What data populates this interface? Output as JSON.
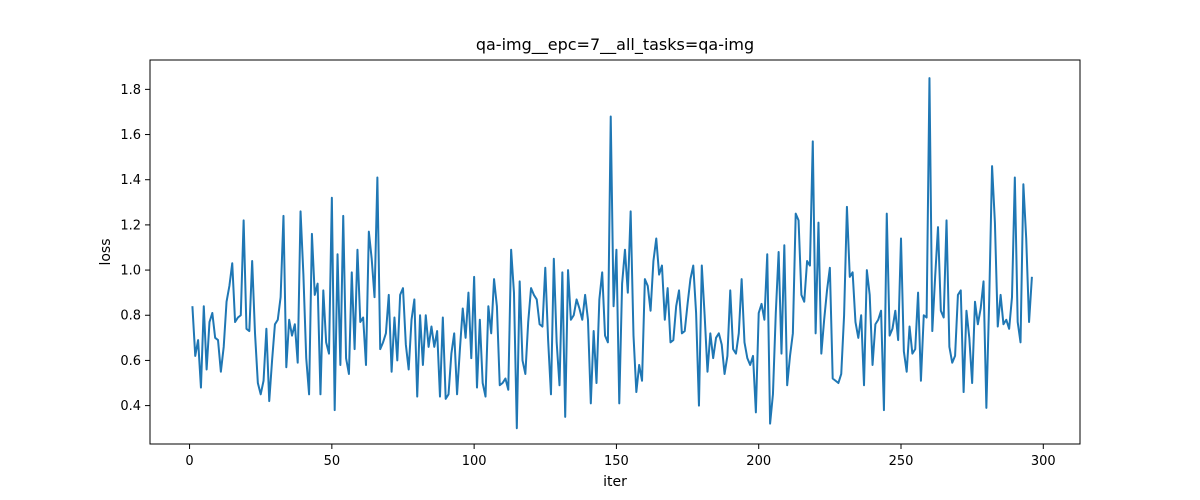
{
  "chart_data": {
    "type": "line",
    "title": "qa-img__epc=7__all_tasks=qa-img",
    "xlabel": "iter",
    "ylabel": "loss",
    "xlim": [
      -13.9,
      312.9
    ],
    "ylim": [
      0.23,
      1.93
    ],
    "x_ticks": [
      0,
      50,
      100,
      150,
      200,
      250,
      300
    ],
    "y_ticks": [
      0.4,
      0.6,
      0.8,
      1.0,
      1.2,
      1.4,
      1.6,
      1.8
    ],
    "x_tick_labels": [
      "0",
      "50",
      "100",
      "150",
      "200",
      "250",
      "300"
    ],
    "y_tick_labels": [
      "0.4",
      "0.6",
      "0.8",
      "1.0",
      "1.2",
      "1.4",
      "1.6",
      "1.8"
    ],
    "grid": false,
    "line_color": "#1f77b4",
    "series": [
      {
        "x_start": 1,
        "x_step": 1,
        "values": [
          0.84,
          0.62,
          0.69,
          0.48,
          0.84,
          0.56,
          0.77,
          0.81,
          0.7,
          0.69,
          0.55,
          0.66,
          0.86,
          0.93,
          1.03,
          0.77,
          0.79,
          0.8,
          1.22,
          0.74,
          0.73,
          1.04,
          0.72,
          0.5,
          0.45,
          0.51,
          0.74,
          0.42,
          0.6,
          0.76,
          0.78,
          0.88,
          1.24,
          0.57,
          0.78,
          0.71,
          0.76,
          0.59,
          1.26,
          0.98,
          0.61,
          0.45,
          1.16,
          0.89,
          0.94,
          0.45,
          0.91,
          0.68,
          0.63,
          1.32,
          0.38,
          1.07,
          0.58,
          1.24,
          0.61,
          0.54,
          0.99,
          0.65,
          1.09,
          0.77,
          0.79,
          0.58,
          1.17,
          1.05,
          0.88,
          1.41,
          0.65,
          0.68,
          0.72,
          0.89,
          0.55,
          0.79,
          0.6,
          0.89,
          0.92,
          0.67,
          0.56,
          0.78,
          0.87,
          0.44,
          0.8,
          0.58,
          0.8,
          0.66,
          0.75,
          0.66,
          0.73,
          0.44,
          0.79,
          0.43,
          0.45,
          0.63,
          0.72,
          0.45,
          0.65,
          0.83,
          0.7,
          0.9,
          0.61,
          0.97,
          0.48,
          0.78,
          0.5,
          0.44,
          0.84,
          0.72,
          0.96,
          0.84,
          0.49,
          0.5,
          0.52,
          0.47,
          1.09,
          0.9,
          0.3,
          0.95,
          0.6,
          0.54,
          0.77,
          0.92,
          0.89,
          0.87,
          0.76,
          0.75,
          1.01,
          0.69,
          0.45,
          1.05,
          0.68,
          0.49,
          0.99,
          0.35,
          1.0,
          0.78,
          0.8,
          0.87,
          0.83,
          0.78,
          0.89,
          0.78,
          0.41,
          0.73,
          0.5,
          0.87,
          0.99,
          0.71,
          0.68,
          1.68,
          0.84,
          1.09,
          0.41,
          0.94,
          1.09,
          0.9,
          1.26,
          0.71,
          0.46,
          0.58,
          0.51,
          0.96,
          0.93,
          0.82,
          1.04,
          1.14,
          0.98,
          1.02,
          0.78,
          0.92,
          0.68,
          0.69,
          0.84,
          0.91,
          0.72,
          0.73,
          0.85,
          0.96,
          1.02,
          0.81,
          0.4,
          1.02,
          0.8,
          0.55,
          0.72,
          0.61,
          0.7,
          0.72,
          0.67,
          0.54,
          0.62,
          0.91,
          0.65,
          0.63,
          0.72,
          0.96,
          0.68,
          0.61,
          0.58,
          0.62,
          0.37,
          0.81,
          0.85,
          0.78,
          1.07,
          0.32,
          0.45,
          0.81,
          1.08,
          0.63,
          1.11,
          0.49,
          0.62,
          0.72,
          1.25,
          1.22,
          0.89,
          0.86,
          1.04,
          1.02,
          1.57,
          0.72,
          1.21,
          0.63,
          0.78,
          0.91,
          1.01,
          0.52,
          0.51,
          0.5,
          0.54,
          0.8,
          1.28,
          0.97,
          0.99,
          0.77,
          0.7,
          0.8,
          0.49,
          1.0,
          0.89,
          0.58,
          0.76,
          0.78,
          0.82,
          0.38,
          1.25,
          0.71,
          0.74,
          0.82,
          0.69,
          1.14,
          0.64,
          0.55,
          0.75,
          0.63,
          0.65,
          0.9,
          0.51,
          0.8,
          0.79,
          1.85,
          0.73,
          0.97,
          1.19,
          0.82,
          0.79,
          1.22,
          0.66,
          0.59,
          0.62,
          0.89,
          0.91,
          0.46,
          0.82,
          0.7,
          0.5,
          0.86,
          0.76,
          0.83,
          0.95,
          0.39,
          0.87,
          1.46,
          1.21,
          0.75,
          0.89,
          0.76,
          0.78,
          0.74,
          0.88,
          1.41,
          0.77,
          0.68,
          1.38,
          1.14,
          0.77,
          0.97
        ]
      }
    ]
  }
}
